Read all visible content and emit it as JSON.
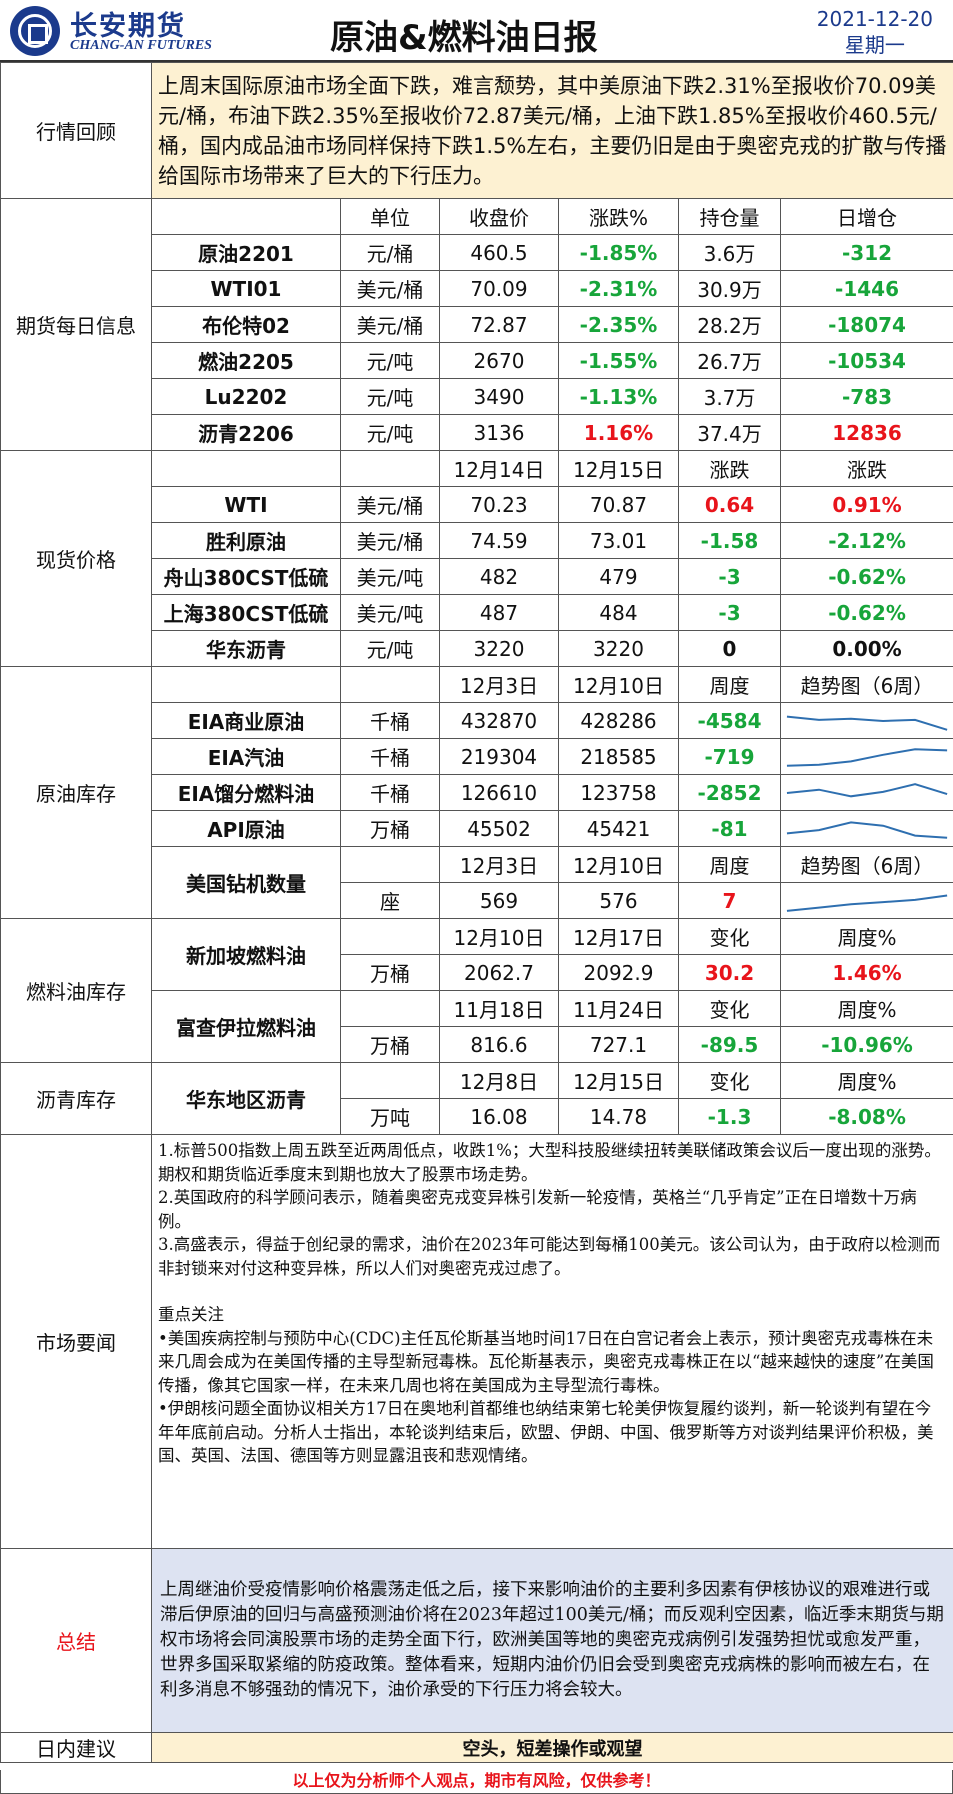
{
  "header": {
    "logo_cn": "长安期货",
    "logo_en": "CHANG-AN FUTURES",
    "title": "原油&燃料油日报",
    "date": "2021-12-20",
    "weekday": "星期一"
  },
  "review": {
    "label": "行情回顾",
    "text": "上周末国际原油市场全面下跌，难言颓势，其中美原油下跌2.31%至报收价70.09美元/桶，布油下跌2.35%至报收价72.87美元/桶，上油下跌1.85%至报收价460.5元/桶，国内成品油市场同样保持下跌1.5%左右，主要仍旧是由于奥密克戎的扩散与传播给国际市场带来了巨大的下行压力。"
  },
  "futures": {
    "label": "期货每日信息",
    "headers": [
      "单位",
      "收盘价",
      "涨跌%",
      "持仓量",
      "日增仓"
    ],
    "rows": [
      {
        "name": "原油2201",
        "unit": "元/桶",
        "close": "460.5",
        "chg": "-1.85%",
        "oi": "3.6万",
        "doi": "-312"
      },
      {
        "name": "WTI01",
        "unit": "美元/桶",
        "close": "70.09",
        "chg": "-2.31%",
        "oi": "30.9万",
        "doi": "-1446"
      },
      {
        "name": "布伦特02",
        "unit": "美元/桶",
        "close": "72.87",
        "chg": "-2.35%",
        "oi": "28.2万",
        "doi": "-18074"
      },
      {
        "name": "燃油2205",
        "unit": "元/吨",
        "close": "2670",
        "chg": "-1.55%",
        "oi": "26.7万",
        "doi": "-10534"
      },
      {
        "name": "Lu2202",
        "unit": "元/吨",
        "close": "3490",
        "chg": "-1.13%",
        "oi": "3.7万",
        "doi": "-783"
      },
      {
        "name": "沥青2206",
        "unit": "元/吨",
        "close": "3136",
        "chg": "1.16%",
        "oi": "37.4万",
        "doi": "12836"
      }
    ]
  },
  "spot": {
    "label": "现货价格",
    "headers": [
      "12月14日",
      "12月15日",
      "涨跌",
      "涨跌"
    ],
    "rows": [
      {
        "name": "WTI",
        "unit": "美元/桶",
        "d1": "70.23",
        "d2": "70.87",
        "chg": "0.64",
        "pct": "0.91%"
      },
      {
        "name": "胜利原油",
        "unit": "美元/桶",
        "d1": "74.59",
        "d2": "73.01",
        "chg": "-1.58",
        "pct": "-2.12%"
      },
      {
        "name": "舟山380CST低硫",
        "unit": "美元/吨",
        "d1": "482",
        "d2": "479",
        "chg": "-3",
        "pct": "-0.62%"
      },
      {
        "name": "上海380CST低硫",
        "unit": "美元/吨",
        "d1": "487",
        "d2": "484",
        "chg": "-3",
        "pct": "-0.62%"
      },
      {
        "name": "华东沥青",
        "unit": "元/吨",
        "d1": "3220",
        "d2": "3220",
        "chg": "0",
        "pct": "0.00%"
      }
    ]
  },
  "inventory": {
    "label": "原油库存",
    "headers": [
      "12月3日",
      "12月10日",
      "周度",
      "趋势图（6周）"
    ],
    "rows": [
      {
        "name": "EIA商业原油",
        "unit": "千桶",
        "d1": "432870",
        "d2": "428286",
        "wk": "-4584",
        "trend": [
          0.7,
          0.55,
          0.6,
          0.5,
          0.55,
          0.1
        ]
      },
      {
        "name": "EIA汽油",
        "unit": "千桶",
        "d1": "219304",
        "d2": "218585",
        "wk": "-719",
        "trend": [
          0.1,
          0.15,
          0.3,
          0.6,
          0.85,
          0.8
        ]
      },
      {
        "name": "EIA馏分燃料油",
        "unit": "千桶",
        "d1": "126610",
        "d2": "123758",
        "wk": "-2852",
        "trend": [
          0.5,
          0.65,
          0.35,
          0.55,
          0.9,
          0.45
        ]
      },
      {
        "name": "API原油",
        "unit": "万桶",
        "d1": "45502",
        "d2": "45421",
        "wk": "-81",
        "trend": [
          0.3,
          0.45,
          0.8,
          0.65,
          0.2,
          0.1
        ]
      }
    ],
    "rig": {
      "name": "美国钻机数量",
      "headers": [
        "12月3日",
        "12月10日",
        "周度",
        "趋势图（6周）"
      ],
      "unit": "座",
      "d1": "569",
      "d2": "576",
      "wk": "7",
      "trend": [
        0.05,
        0.2,
        0.35,
        0.45,
        0.55,
        0.75
      ]
    }
  },
  "fuel_inventory": {
    "label": "燃料油库存",
    "sg": {
      "name": "新加坡燃料油",
      "headers": [
        "12月10日",
        "12月17日",
        "变化",
        "周度%"
      ],
      "unit": "万桶",
      "d1": "2062.7",
      "d2": "2092.9",
      "chg": "30.2",
      "pct": "1.46%"
    },
    "fj": {
      "name": "富查伊拉燃料油",
      "headers": [
        "11月18日",
        "11月24日",
        "变化",
        "周度%"
      ],
      "unit": "万桶",
      "d1": "816.6",
      "d2": "727.1",
      "chg": "-89.5",
      "pct": "-10.96%"
    }
  },
  "asphalt_inventory": {
    "label": "沥青库存",
    "name": "华东地区沥青",
    "headers": [
      "12月8日",
      "12月15日",
      "变化",
      "周度%"
    ],
    "unit": "万吨",
    "d1": "16.08",
    "d2": "14.78",
    "chg": "-1.3",
    "pct": "-8.08%"
  },
  "news": {
    "label": "市场要闻",
    "items": [
      "1.标普500指数上周五跌至近两周低点，收跌1%；大型科技股继续扭转美联储政策会议后一度出现的涨势。期权和期货临近季度末到期也放大了股票市场走势。",
      "2.英国政府的科学顾问表示，随着奥密克戎变异株引发新一轮疫情，英格兰“几乎肯定”正在日增数十万病例。",
      "3.高盛表示，得益于创纪录的需求，油价在2023年可能达到每桶100美元。该公司认为，由于政府以检测而非封锁来对付这种变异株，所以人们对奥密克戎过虑了。"
    ],
    "focus_title": "重点关注",
    "focus": [
      "•美国疾病控制与预防中心(CDC)主任瓦伦斯基当地时间17日在白宫记者会上表示，预计奥密克戎毒株在未来几周会成为在美国传播的主导型新冠毒株。瓦伦斯基表示，奥密克戎毒株正在以“越来越快的速度”在美国传播，像其它国家一样，在未来几周也将在美国成为主导型流行毒株。",
      "•伊朗核问题全面协议相关方17日在奥地利首都维也纳结束第七轮美伊恢复履约谈判，新一轮谈判有望在今年年底前启动。分析人士指出，本轮谈判结束后，欧盟、伊朗、中国、俄罗斯等方对谈判结果评价积极，美国、英国、法国、德国等方则显露沮丧和悲观情绪。"
    ]
  },
  "summary": {
    "label": "总结",
    "text": "上周继油价受疫情影响价格震荡走低之后，接下来影响油价的主要利多因素有伊核协议的艰难进行或滞后伊原油的回归与高盛预测油价将在2023年超过100美元/桶；而反观利空因素，临近季末期货与期权市场将会同演股票市场的走势全面下行，欧洲美国等地的奥密克戎病例引发强势担忧或愈发严重，世界多国采取紧缩的防疫政策。整体看来，短期内油价仍旧会受到奥密克戎病株的影响而被左右，在利多消息不够强劲的情况下，油价承受的下行压力将会较大。"
  },
  "recommendation": {
    "label": "日内建议",
    "text": "空头，短差操作或观望"
  },
  "footer": "以上仅为分析师个人观点，期市有风险，仅供参考！",
  "colors": {
    "brand": "#1b3a8c",
    "up": "#e8141b",
    "down": "#17a53a",
    "highlight": "#fdf1d2",
    "summary_bg": "#dde3f2",
    "spark": "#2e6fb0"
  }
}
